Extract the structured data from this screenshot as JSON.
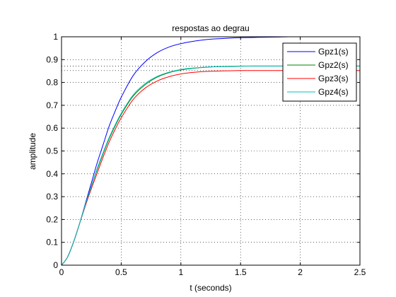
{
  "chart_data": {
    "type": "line",
    "title": "respostas ao degrau",
    "xlabel": "t (seconds)",
    "ylabel": "amplitude",
    "xlim": [
      0,
      2.5
    ],
    "ylim": [
      0,
      1
    ],
    "xticks": [
      0,
      0.5,
      1,
      1.5,
      2,
      2.5
    ],
    "xtick_labels": [
      "0",
      "0.5",
      "1",
      "1.5",
      "2",
      "2.5"
    ],
    "yticks": [
      0,
      0.1,
      0.2,
      0.3,
      0.4,
      0.5,
      0.6,
      0.7,
      0.8,
      0.9,
      1
    ],
    "ytick_labels": [
      "0",
      "0.1",
      "0.2",
      "0.3",
      "0.4",
      "0.5",
      "0.6",
      "0.7",
      "0.8",
      "0.9",
      "1"
    ],
    "grid": true,
    "legend_position": "top-right",
    "reference_levels": [
      0.872,
      0.852
    ],
    "series": [
      {
        "name": "Gpz1(s)",
        "color": "#0000ff",
        "x": [
          0,
          0.05,
          0.1,
          0.15,
          0.2,
          0.25,
          0.3,
          0.35,
          0.4,
          0.45,
          0.5,
          0.6,
          0.7,
          0.8,
          0.9,
          1.0,
          1.1,
          1.2,
          1.3,
          1.4,
          1.5,
          1.6,
          1.7,
          1.8,
          1.9,
          2.0
        ],
        "y": [
          0,
          0.035,
          0.1,
          0.18,
          0.27,
          0.36,
          0.45,
          0.53,
          0.61,
          0.675,
          0.735,
          0.83,
          0.89,
          0.93,
          0.955,
          0.97,
          0.98,
          0.987,
          0.991,
          0.994,
          0.996,
          0.997,
          0.998,
          0.999,
          1.0,
          1.0
        ]
      },
      {
        "name": "Gpz2(s)",
        "color": "#008000",
        "x": [
          0,
          0.05,
          0.1,
          0.15,
          0.2,
          0.25,
          0.3,
          0.35,
          0.4,
          0.45,
          0.5,
          0.6,
          0.7,
          0.8,
          0.9,
          1.0,
          1.1,
          1.2,
          1.3,
          1.4,
          1.5,
          1.6,
          1.8,
          2.0,
          2.2,
          2.5
        ],
        "y": [
          0,
          0.035,
          0.1,
          0.18,
          0.265,
          0.345,
          0.42,
          0.49,
          0.555,
          0.61,
          0.66,
          0.74,
          0.79,
          0.823,
          0.843,
          0.855,
          0.862,
          0.866,
          0.869,
          0.87,
          0.871,
          0.872,
          0.872,
          0.872,
          0.872,
          0.872
        ]
      },
      {
        "name": "Gpz3(s)",
        "color": "#ff0000",
        "x": [
          0,
          0.05,
          0.1,
          0.15,
          0.2,
          0.25,
          0.3,
          0.35,
          0.4,
          0.45,
          0.5,
          0.6,
          0.7,
          0.8,
          0.9,
          1.0,
          1.1,
          1.2,
          1.3,
          1.4,
          1.5,
          1.6,
          1.8,
          2.0,
          2.2,
          2.5
        ],
        "y": [
          0,
          0.035,
          0.1,
          0.18,
          0.26,
          0.335,
          0.405,
          0.475,
          0.54,
          0.595,
          0.645,
          0.725,
          0.775,
          0.806,
          0.825,
          0.837,
          0.844,
          0.848,
          0.85,
          0.851,
          0.852,
          0.852,
          0.852,
          0.852,
          0.852,
          0.852
        ]
      },
      {
        "name": "Gpz4(s)",
        "color": "#00bfbf",
        "x": [
          0,
          0.05,
          0.1,
          0.15,
          0.2,
          0.25,
          0.3,
          0.35,
          0.4,
          0.45,
          0.5,
          0.6,
          0.7,
          0.8,
          0.9,
          1.0,
          1.1,
          1.2,
          1.3,
          1.4,
          1.5,
          1.6,
          1.8,
          2.0,
          2.2,
          2.5
        ],
        "y": [
          0,
          0.035,
          0.1,
          0.18,
          0.265,
          0.345,
          0.425,
          0.495,
          0.56,
          0.615,
          0.665,
          0.745,
          0.795,
          0.826,
          0.845,
          0.857,
          0.863,
          0.867,
          0.869,
          0.871,
          0.872,
          0.872,
          0.872,
          0.872,
          0.872,
          0.872
        ]
      }
    ]
  }
}
